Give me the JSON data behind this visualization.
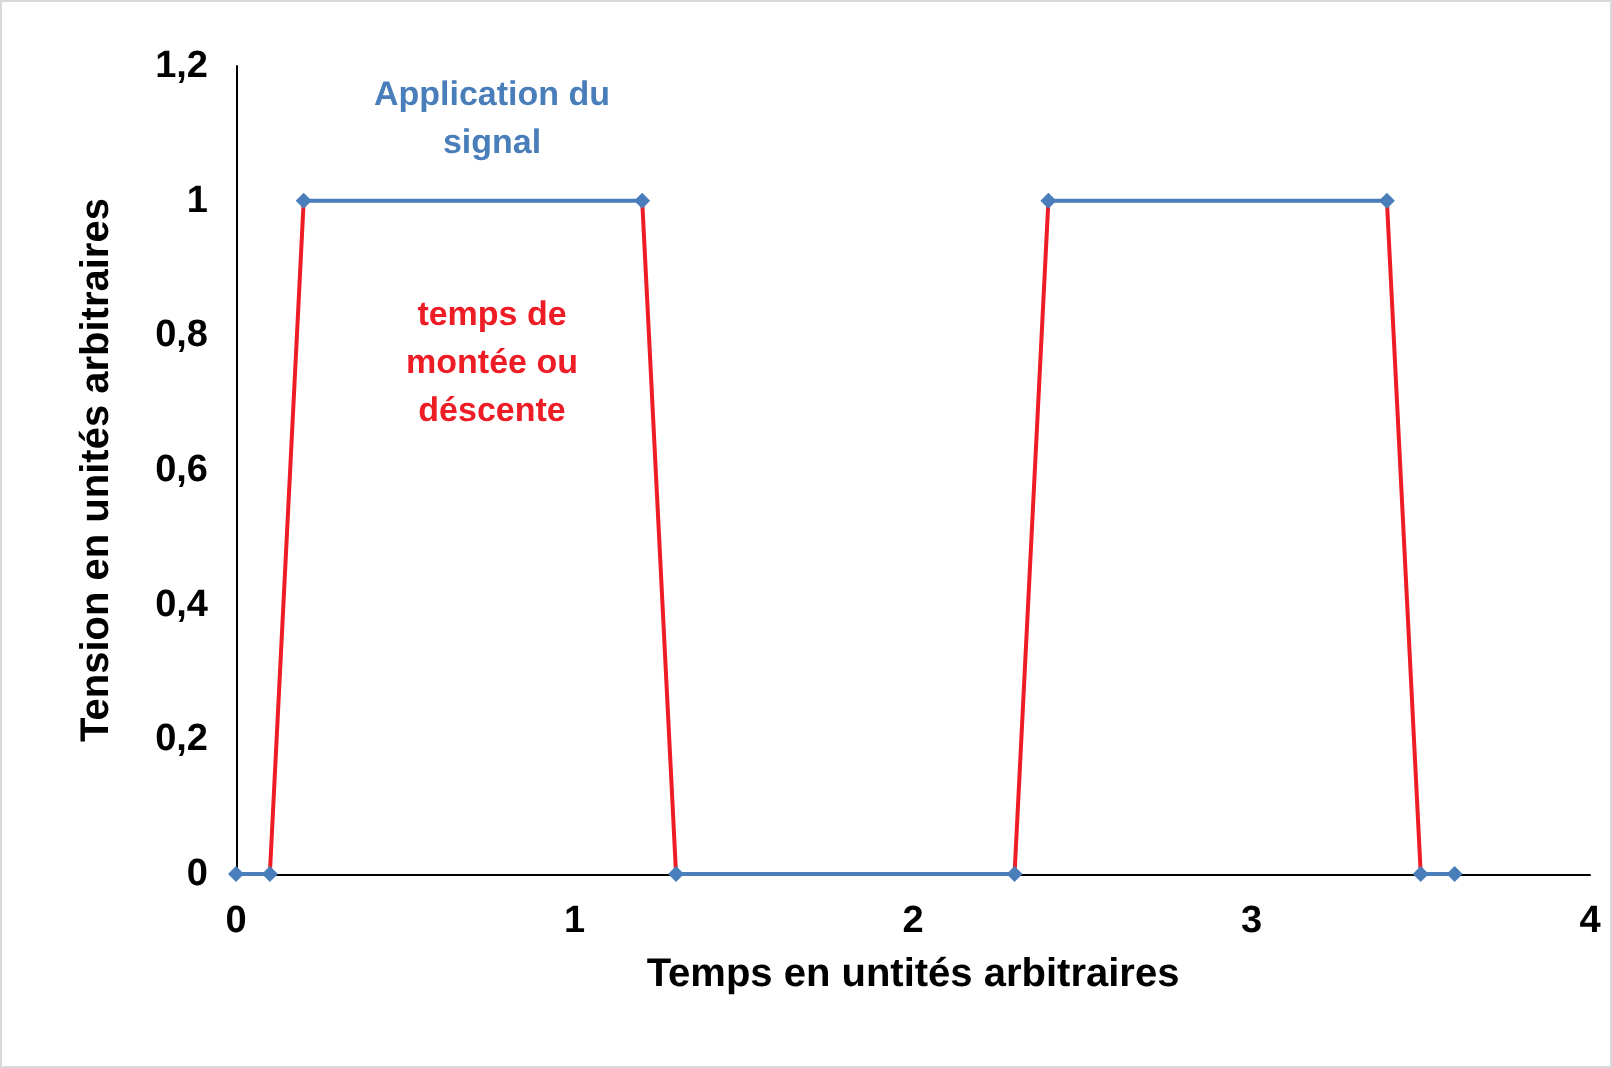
{
  "chart_data": {
    "type": "line",
    "xlabel": "Temps en untités arbitraires",
    "ylabel": "Tension en unités arbitraires",
    "xlim": [
      0,
      4
    ],
    "xticks": [
      0,
      1,
      2,
      3,
      4
    ],
    "ylim": [
      0,
      1.2
    ],
    "yticks": [
      0,
      {
        "value": 0.2,
        "label": "0,2"
      },
      {
        "value": 0.4,
        "label": "0,4"
      },
      {
        "value": 0.6,
        "label": "0,6"
      },
      {
        "value": 0.8,
        "label": "0,8"
      },
      1,
      {
        "value": 1.2,
        "label": "1,2"
      }
    ],
    "series": [
      {
        "color": "#4a7ebb",
        "marker": "diamond",
        "x": [
          0,
          0.1,
          0.15,
          0.2,
          1.2,
          1.25,
          1.3,
          2.3,
          2.35,
          2.4,
          3.4,
          3.45,
          3.5,
          3.6
        ],
        "values": [
          0,
          0,
          null,
          1,
          1,
          null,
          0,
          0,
          null,
          1,
          1,
          null,
          0,
          0
        ]
      },
      {
        "color": "#ee1c25",
        "marker": "none",
        "x": [
          0.1,
          0.2,
          0.25,
          1.2,
          1.3,
          1.35,
          2.3,
          2.4,
          2.45,
          3.4,
          3.5
        ],
        "values": [
          0,
          1,
          null,
          1,
          0,
          null,
          0,
          1,
          null,
          1,
          0
        ]
      }
    ],
    "annotations": [
      "Application du\nsignal",
      "temps de\nmontée ou\ndéscente"
    ]
  }
}
